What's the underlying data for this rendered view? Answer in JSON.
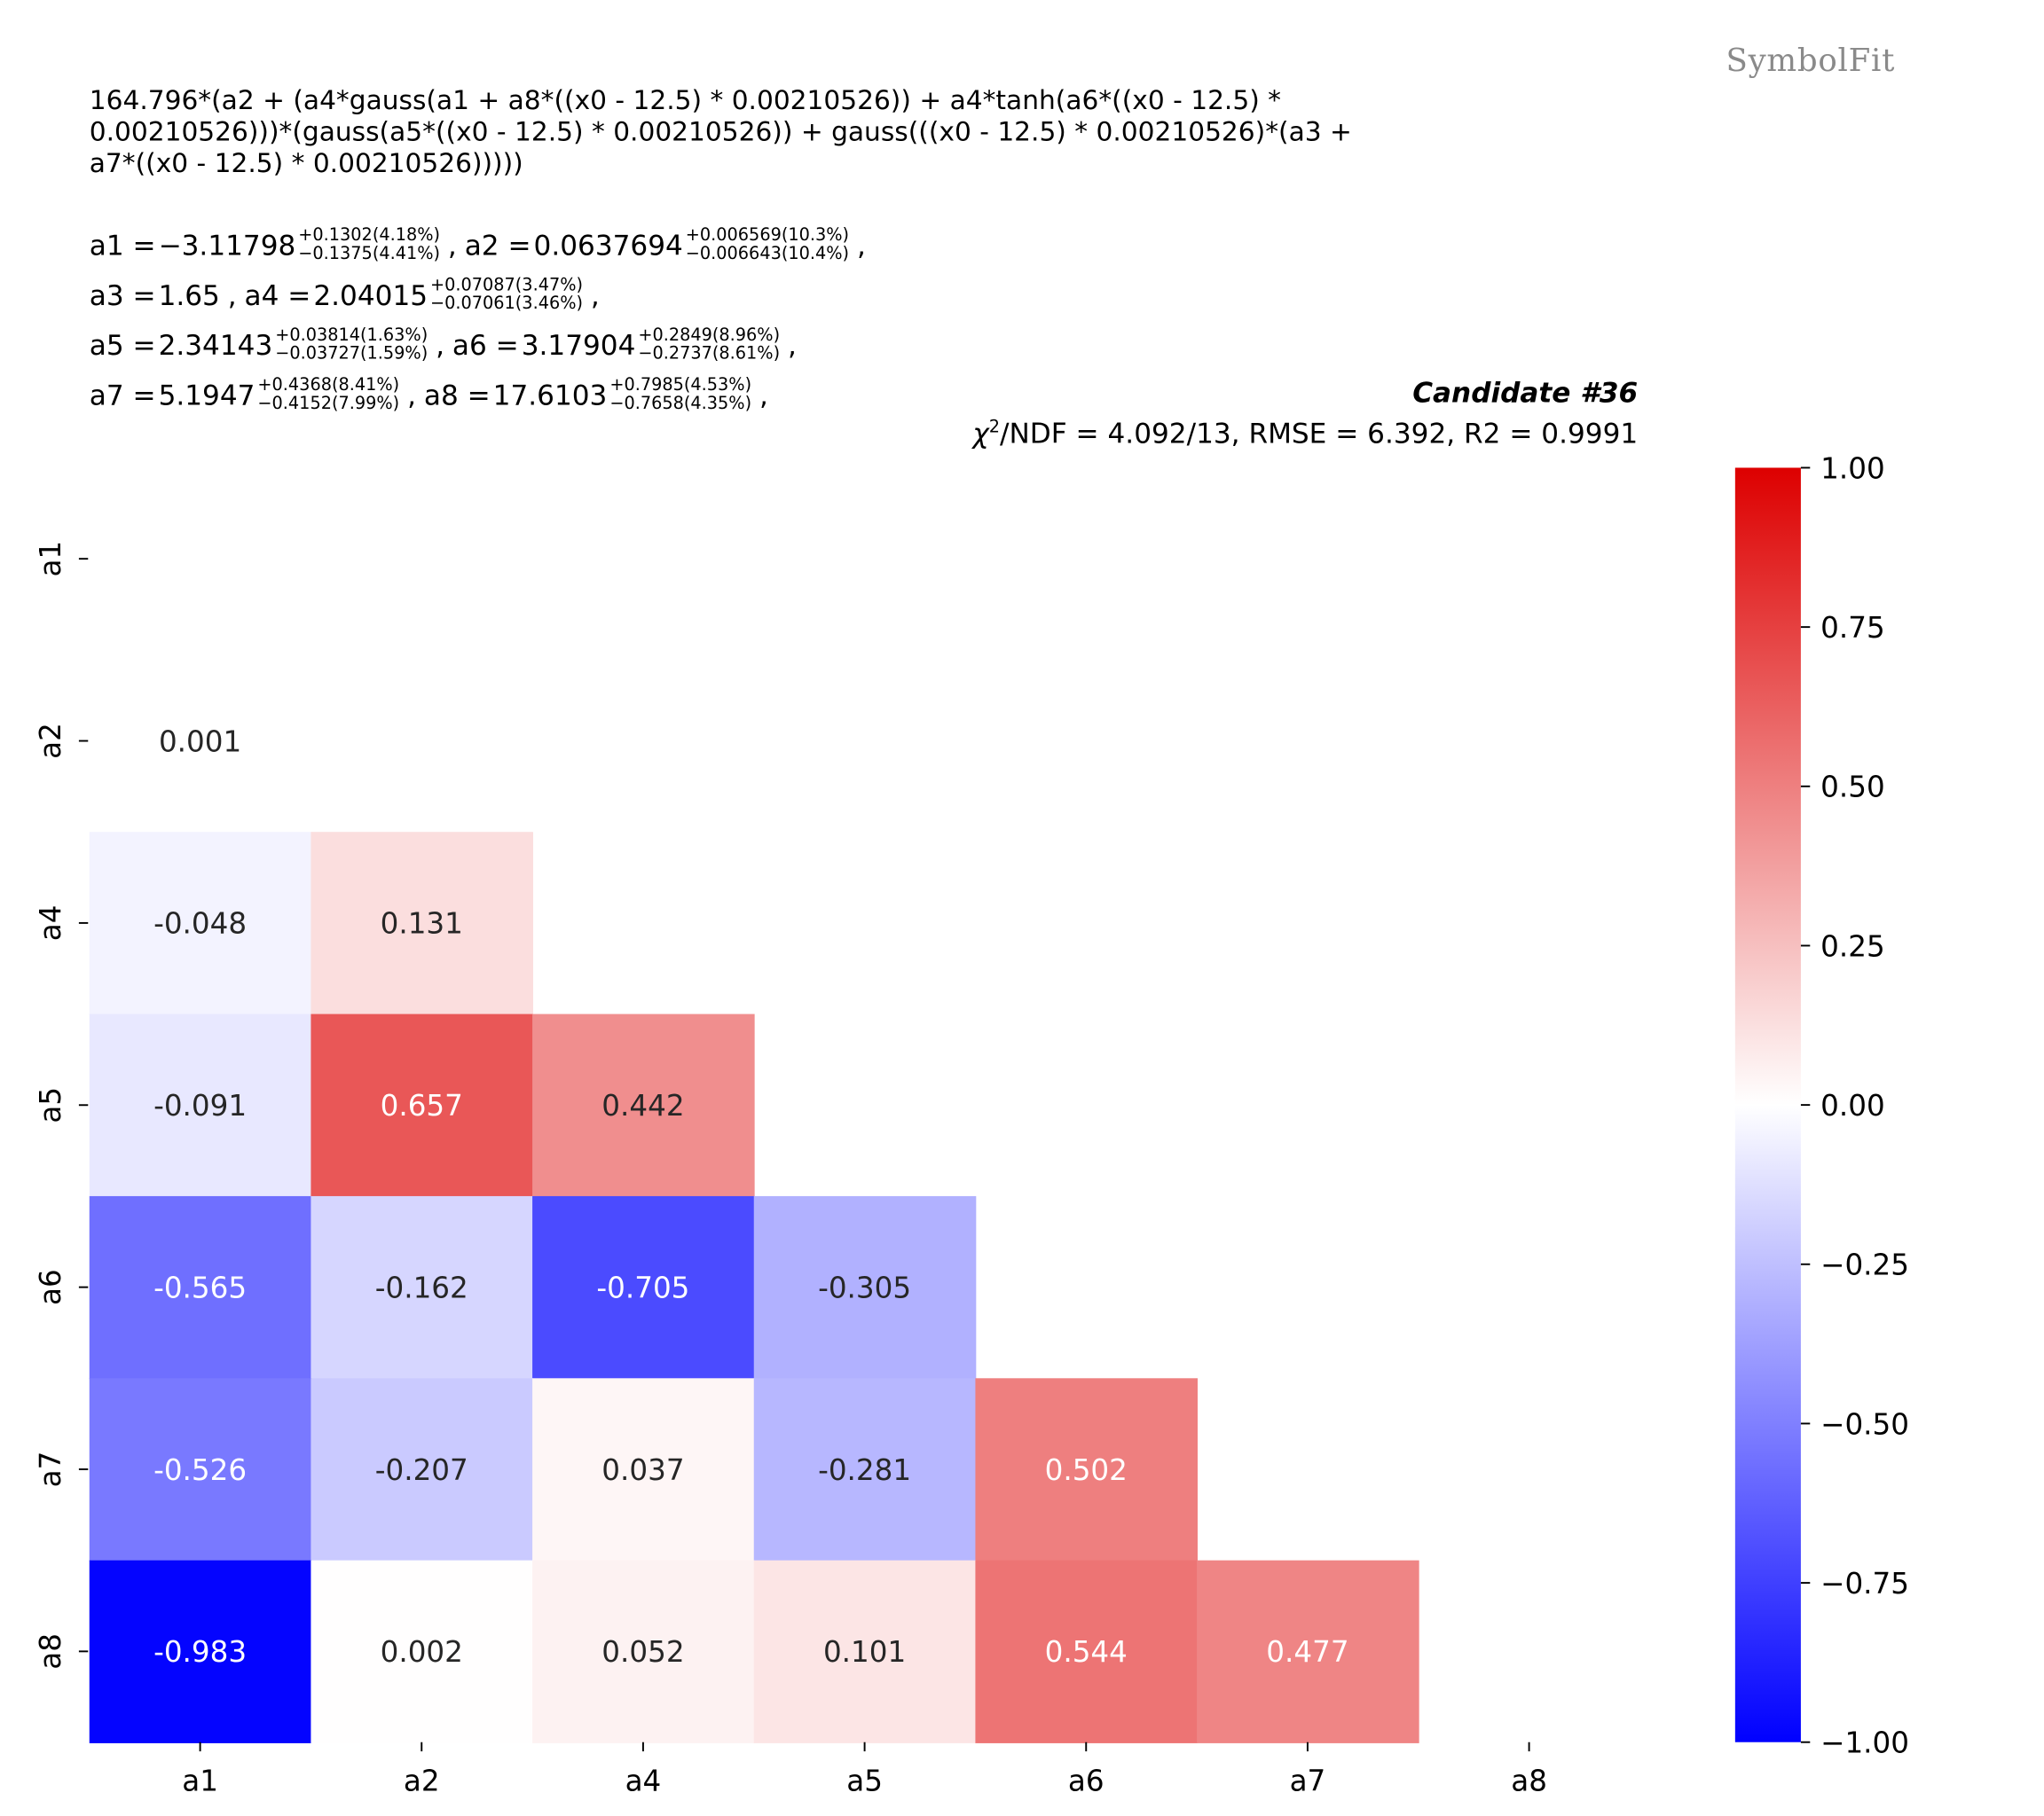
{
  "watermark": "SymbolFit",
  "formula_lines": [
    "164.796*(a2 + (a4*gauss(a1 + a8*((x0 - 12.5) * 0.00210526)) + a4*tanh(a6*((x0 - 12.5) *",
    "0.00210526)))*(gauss(a5*((x0 - 12.5) * 0.00210526)) + gauss(((x0 - 12.5) * 0.00210526)*(a3 +",
    "a7*((x0 - 12.5) * 0.00210526)))))"
  ],
  "param_rows": [
    [
      {
        "name": "a1",
        "value": "−3.11798",
        "up": "+0.1302(4.18%)",
        "down": "−0.1375(4.41%)"
      },
      {
        "name": "a2",
        "value": "0.0637694",
        "up": "+0.006569(10.3%)",
        "down": "−0.006643(10.4%)"
      }
    ],
    [
      {
        "name": "a3",
        "value": "1.65",
        "up": "",
        "down": ""
      },
      {
        "name": "a4",
        "value": "2.04015",
        "up": "+0.07087(3.47%)",
        "down": "−0.07061(3.46%)"
      }
    ],
    [
      {
        "name": "a5",
        "value": "2.34143",
        "up": "+0.03814(1.63%)",
        "down": "−0.03727(1.59%)"
      },
      {
        "name": "a6",
        "value": "3.17904",
        "up": "+0.2849(8.96%)",
        "down": "−0.2737(8.61%)"
      }
    ],
    [
      {
        "name": "a7",
        "value": "5.1947",
        "up": "+0.4368(8.41%)",
        "down": "−0.4152(7.99%)"
      },
      {
        "name": "a8",
        "value": "17.6103",
        "up": "+0.7985(4.53%)",
        "down": "−0.7658(4.35%)"
      }
    ]
  ],
  "candidate": "Candidate #36",
  "stats": {
    "chi_symbol": "χ",
    "chi_sup": "2",
    "rest": "/NDF = 4.092/13, RMSE = 6.392, R2 = 0.9991"
  },
  "chart_data": {
    "type": "heatmap",
    "x_labels": [
      "a1",
      "a2",
      "a4",
      "a5",
      "a6",
      "a7",
      "a8"
    ],
    "y_labels": [
      "a1",
      "a2",
      "a4",
      "a5",
      "a6",
      "a7",
      "a8"
    ],
    "matrix": [
      [
        null,
        null,
        null,
        null,
        null,
        null,
        null
      ],
      [
        0.001,
        null,
        null,
        null,
        null,
        null,
        null
      ],
      [
        -0.048,
        0.131,
        null,
        null,
        null,
        null,
        null
      ],
      [
        -0.091,
        0.657,
        0.442,
        null,
        null,
        null,
        null
      ],
      [
        -0.565,
        -0.162,
        -0.705,
        -0.305,
        null,
        null,
        null
      ],
      [
        -0.526,
        -0.207,
        0.037,
        -0.281,
        0.502,
        null,
        null
      ],
      [
        -0.983,
        0.002,
        0.052,
        0.101,
        0.544,
        0.477,
        null
      ]
    ],
    "value_labels": [
      [
        null,
        null,
        null,
        null,
        null,
        null,
        null
      ],
      [
        "0.001",
        null,
        null,
        null,
        null,
        null,
        null
      ],
      [
        "-0.048",
        "0.131",
        null,
        null,
        null,
        null,
        null
      ],
      [
        "-0.091",
        "0.657",
        "0.442",
        null,
        null,
        null,
        null
      ],
      [
        "-0.565",
        "-0.162",
        "-0.705",
        "-0.305",
        null,
        null,
        null
      ],
      [
        "-0.526",
        "-0.207",
        "0.037",
        "-0.281",
        "0.502",
        null,
        null
      ],
      [
        "-0.983",
        "0.002",
        "0.052",
        "0.101",
        "0.544",
        "0.477",
        null
      ]
    ],
    "colorbar": {
      "range": [
        -1.0,
        1.0
      ],
      "ticks": [
        1.0,
        0.75,
        0.5,
        0.25,
        0.0,
        -0.25,
        -0.5,
        -0.75,
        -1.0
      ],
      "tick_labels": [
        "1.00",
        "0.75",
        "0.50",
        "0.25",
        "0.00",
        "−0.25",
        "−0.50",
        "−0.75",
        "−1.00"
      ],
      "colors": {
        "low": "#0000ff",
        "mid": "#ffffff",
        "high": "#dd0000"
      }
    }
  }
}
